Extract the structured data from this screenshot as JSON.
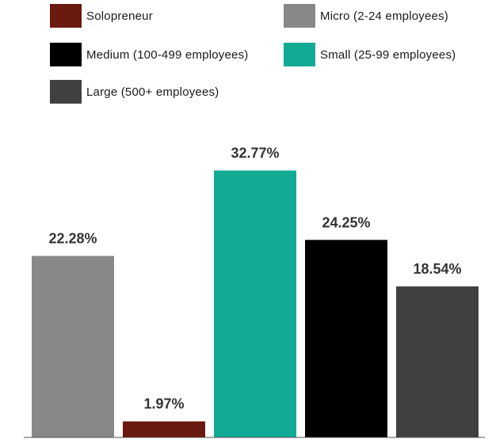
{
  "chart_data": {
    "type": "bar",
    "categories": [
      "Micro (2-24 employees)",
      "Solopreneur",
      "Small (25-99 employees)",
      "Medium (100-499 employees)",
      "Large (500+ employees)"
    ],
    "values": [
      22.28,
      1.97,
      32.77,
      24.25,
      18.54
    ],
    "value_labels": [
      "22.28%",
      "1.97%",
      "32.77%",
      "24.25%",
      "18.54%"
    ],
    "colors": [
      "#888888",
      "#6b1a10",
      "#12aa94",
      "#000000",
      "#404040"
    ],
    "ylim": [
      0,
      37
    ],
    "legend": [
      {
        "label": "Solopreneur",
        "color": "#6b1a10"
      },
      {
        "label": "Micro (2-24 employees)",
        "color": "#888888"
      },
      {
        "label": "Medium (100-499 employees)",
        "color": "#000000"
      },
      {
        "label": "Small (25-99 employees)",
        "color": "#12aa94"
      },
      {
        "label": "Large (500+ employees)",
        "color": "#404040"
      }
    ],
    "legend_placement": "top",
    "grid": false,
    "title": "",
    "xlabel": "",
    "ylabel": ""
  }
}
